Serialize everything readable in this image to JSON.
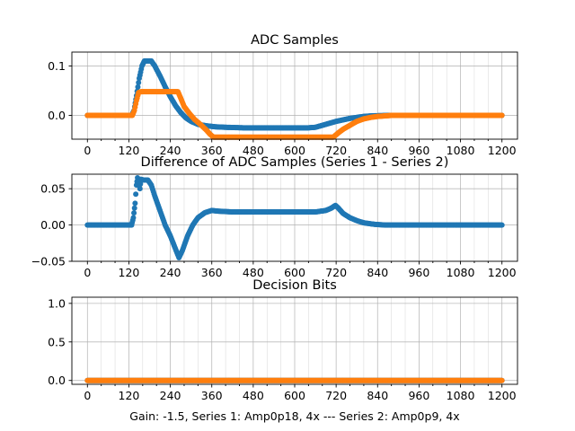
{
  "chart_data": [
    {
      "type": "scatter",
      "title": "ADC Samples",
      "xlabel": "",
      "ylabel": "",
      "xlim": [
        -45,
        1245
      ],
      "ylim": [
        -0.048,
        0.128
      ],
      "xticks": [
        0,
        120,
        240,
        360,
        480,
        600,
        720,
        840,
        960,
        1080,
        1200
      ],
      "yticks": [
        0.0,
        0.1
      ],
      "ytick_labels": [
        "0.0",
        "0.1"
      ],
      "grid": true,
      "series": [
        {
          "color": "#1f77b4",
          "points": [
            [
              0,
              0
            ],
            [
              120,
              0
            ],
            [
              128,
              0
            ],
            [
              135,
              0.01
            ],
            [
              142,
              0.04
            ],
            [
              150,
              0.075
            ],
            [
              158,
              0.1
            ],
            [
              165,
              0.11
            ],
            [
              175,
              0.11
            ],
            [
              185,
              0.11
            ],
            [
              195,
              0.1
            ],
            [
              210,
              0.08
            ],
            [
              225,
              0.058
            ],
            [
              240,
              0.038
            ],
            [
              255,
              0.02
            ],
            [
              270,
              0.006
            ],
            [
              285,
              -0.005
            ],
            [
              300,
              -0.012
            ],
            [
              320,
              -0.018
            ],
            [
              345,
              -0.021
            ],
            [
              370,
              -0.023
            ],
            [
              400,
              -0.024
            ],
            [
              450,
              -0.025
            ],
            [
              500,
              -0.025
            ],
            [
              550,
              -0.025
            ],
            [
              600,
              -0.025
            ],
            [
              640,
              -0.025
            ],
            [
              660,
              -0.024
            ],
            [
              680,
              -0.02
            ],
            [
              700,
              -0.016
            ],
            [
              720,
              -0.012
            ],
            [
              740,
              -0.009
            ],
            [
              760,
              -0.006
            ],
            [
              780,
              -0.004
            ],
            [
              800,
              -0.002
            ],
            [
              820,
              -0.001
            ],
            [
              840,
              -0.0005
            ],
            [
              870,
              0
            ],
            [
              900,
              0
            ],
            [
              1000,
              0
            ],
            [
              1100,
              0
            ],
            [
              1200,
              0
            ]
          ]
        },
        {
          "color": "#ff7f0e",
          "points": [
            [
              0,
              0
            ],
            [
              130,
              0
            ],
            [
              136,
              0.01
            ],
            [
              142,
              0.03
            ],
            [
              148,
              0.046
            ],
            [
              155,
              0.048
            ],
            [
              200,
              0.048
            ],
            [
              262,
              0.048
            ],
            [
              270,
              0.035
            ],
            [
              280,
              0.018
            ],
            [
              295,
              0.004
            ],
            [
              310,
              -0.008
            ],
            [
              330,
              -0.02
            ],
            [
              345,
              -0.03
            ],
            [
              355,
              -0.038
            ],
            [
              365,
              -0.044
            ],
            [
              400,
              -0.044
            ],
            [
              500,
              -0.044
            ],
            [
              600,
              -0.044
            ],
            [
              660,
              -0.044
            ],
            [
              712,
              -0.044
            ],
            [
              725,
              -0.036
            ],
            [
              740,
              -0.028
            ],
            [
              760,
              -0.02
            ],
            [
              780,
              -0.012
            ],
            [
              800,
              -0.007
            ],
            [
              820,
              -0.004
            ],
            [
              840,
              -0.002
            ],
            [
              860,
              -0.001
            ],
            [
              880,
              0
            ],
            [
              1000,
              0
            ],
            [
              1100,
              0
            ],
            [
              1200,
              0
            ]
          ]
        }
      ]
    },
    {
      "type": "scatter",
      "title": "Difference of ADC Samples (Series 1 - Series 2)",
      "xlabel": "",
      "ylabel": "",
      "xlim": [
        -45,
        1245
      ],
      "ylim": [
        -0.05,
        0.07
      ],
      "xticks": [
        0,
        120,
        240,
        360,
        480,
        600,
        720,
        840,
        960,
        1080,
        1200
      ],
      "yticks": [
        -0.05,
        0.0,
        0.05
      ],
      "ytick_labels": [
        "−0.05",
        "0.00",
        "0.05"
      ],
      "grid": true,
      "series": [
        {
          "color": "#1f77b4",
          "points": [
            [
              0,
              0
            ],
            [
              120,
              0
            ],
            [
              128,
              0
            ],
            [
              133,
              0.01
            ],
            [
              138,
              0.03
            ],
            [
              142,
              0.055
            ],
            [
              145,
              0.065
            ],
            [
              148,
              0.058
            ],
            [
              152,
              0.05
            ],
            [
              155,
              0.063
            ],
            [
              162,
              0.062
            ],
            [
              175,
              0.062
            ],
            [
              185,
              0.055
            ],
            [
              195,
              0.04
            ],
            [
              210,
              0.02
            ],
            [
              225,
              0.0
            ],
            [
              240,
              -0.015
            ],
            [
              255,
              -0.033
            ],
            [
              265,
              -0.045
            ],
            [
              275,
              -0.035
            ],
            [
              290,
              -0.015
            ],
            [
              305,
              0.0
            ],
            [
              320,
              0.01
            ],
            [
              340,
              0.017
            ],
            [
              360,
              0.02
            ],
            [
              380,
              0.019
            ],
            [
              420,
              0.018
            ],
            [
              480,
              0.018
            ],
            [
              540,
              0.018
            ],
            [
              600,
              0.018
            ],
            [
              660,
              0.018
            ],
            [
              690,
              0.02
            ],
            [
              705,
              0.023
            ],
            [
              718,
              0.027
            ],
            [
              725,
              0.024
            ],
            [
              740,
              0.016
            ],
            [
              760,
              0.01
            ],
            [
              780,
              0.006
            ],
            [
              800,
              0.003
            ],
            [
              830,
              0.001
            ],
            [
              860,
              0.0
            ],
            [
              900,
              0
            ],
            [
              1000,
              0
            ],
            [
              1100,
              0
            ],
            [
              1200,
              0
            ]
          ]
        }
      ]
    },
    {
      "type": "scatter",
      "title": "Decision Bits",
      "xlabel": "Gain: -1.5, Series 1: Amp0p18, 4x --- Series 2: Amp0p9, 4x",
      "ylabel": "",
      "xlim": [
        -45,
        1245
      ],
      "ylim": [
        -0.05,
        1.08
      ],
      "xticks": [
        0,
        120,
        240,
        360,
        480,
        600,
        720,
        840,
        960,
        1080,
        1200
      ],
      "yticks": [
        0.0,
        0.5,
        1.0
      ],
      "ytick_labels": [
        "0.0",
        "0.5",
        "1.0"
      ],
      "grid": true,
      "series": [
        {
          "color": "#1f77b4",
          "points": [
            [
              0,
              0
            ],
            [
              1200,
              0
            ]
          ]
        },
        {
          "color": "#ff7f0e",
          "points": [
            [
              0,
              0
            ],
            [
              1200,
              0
            ]
          ]
        }
      ]
    }
  ]
}
